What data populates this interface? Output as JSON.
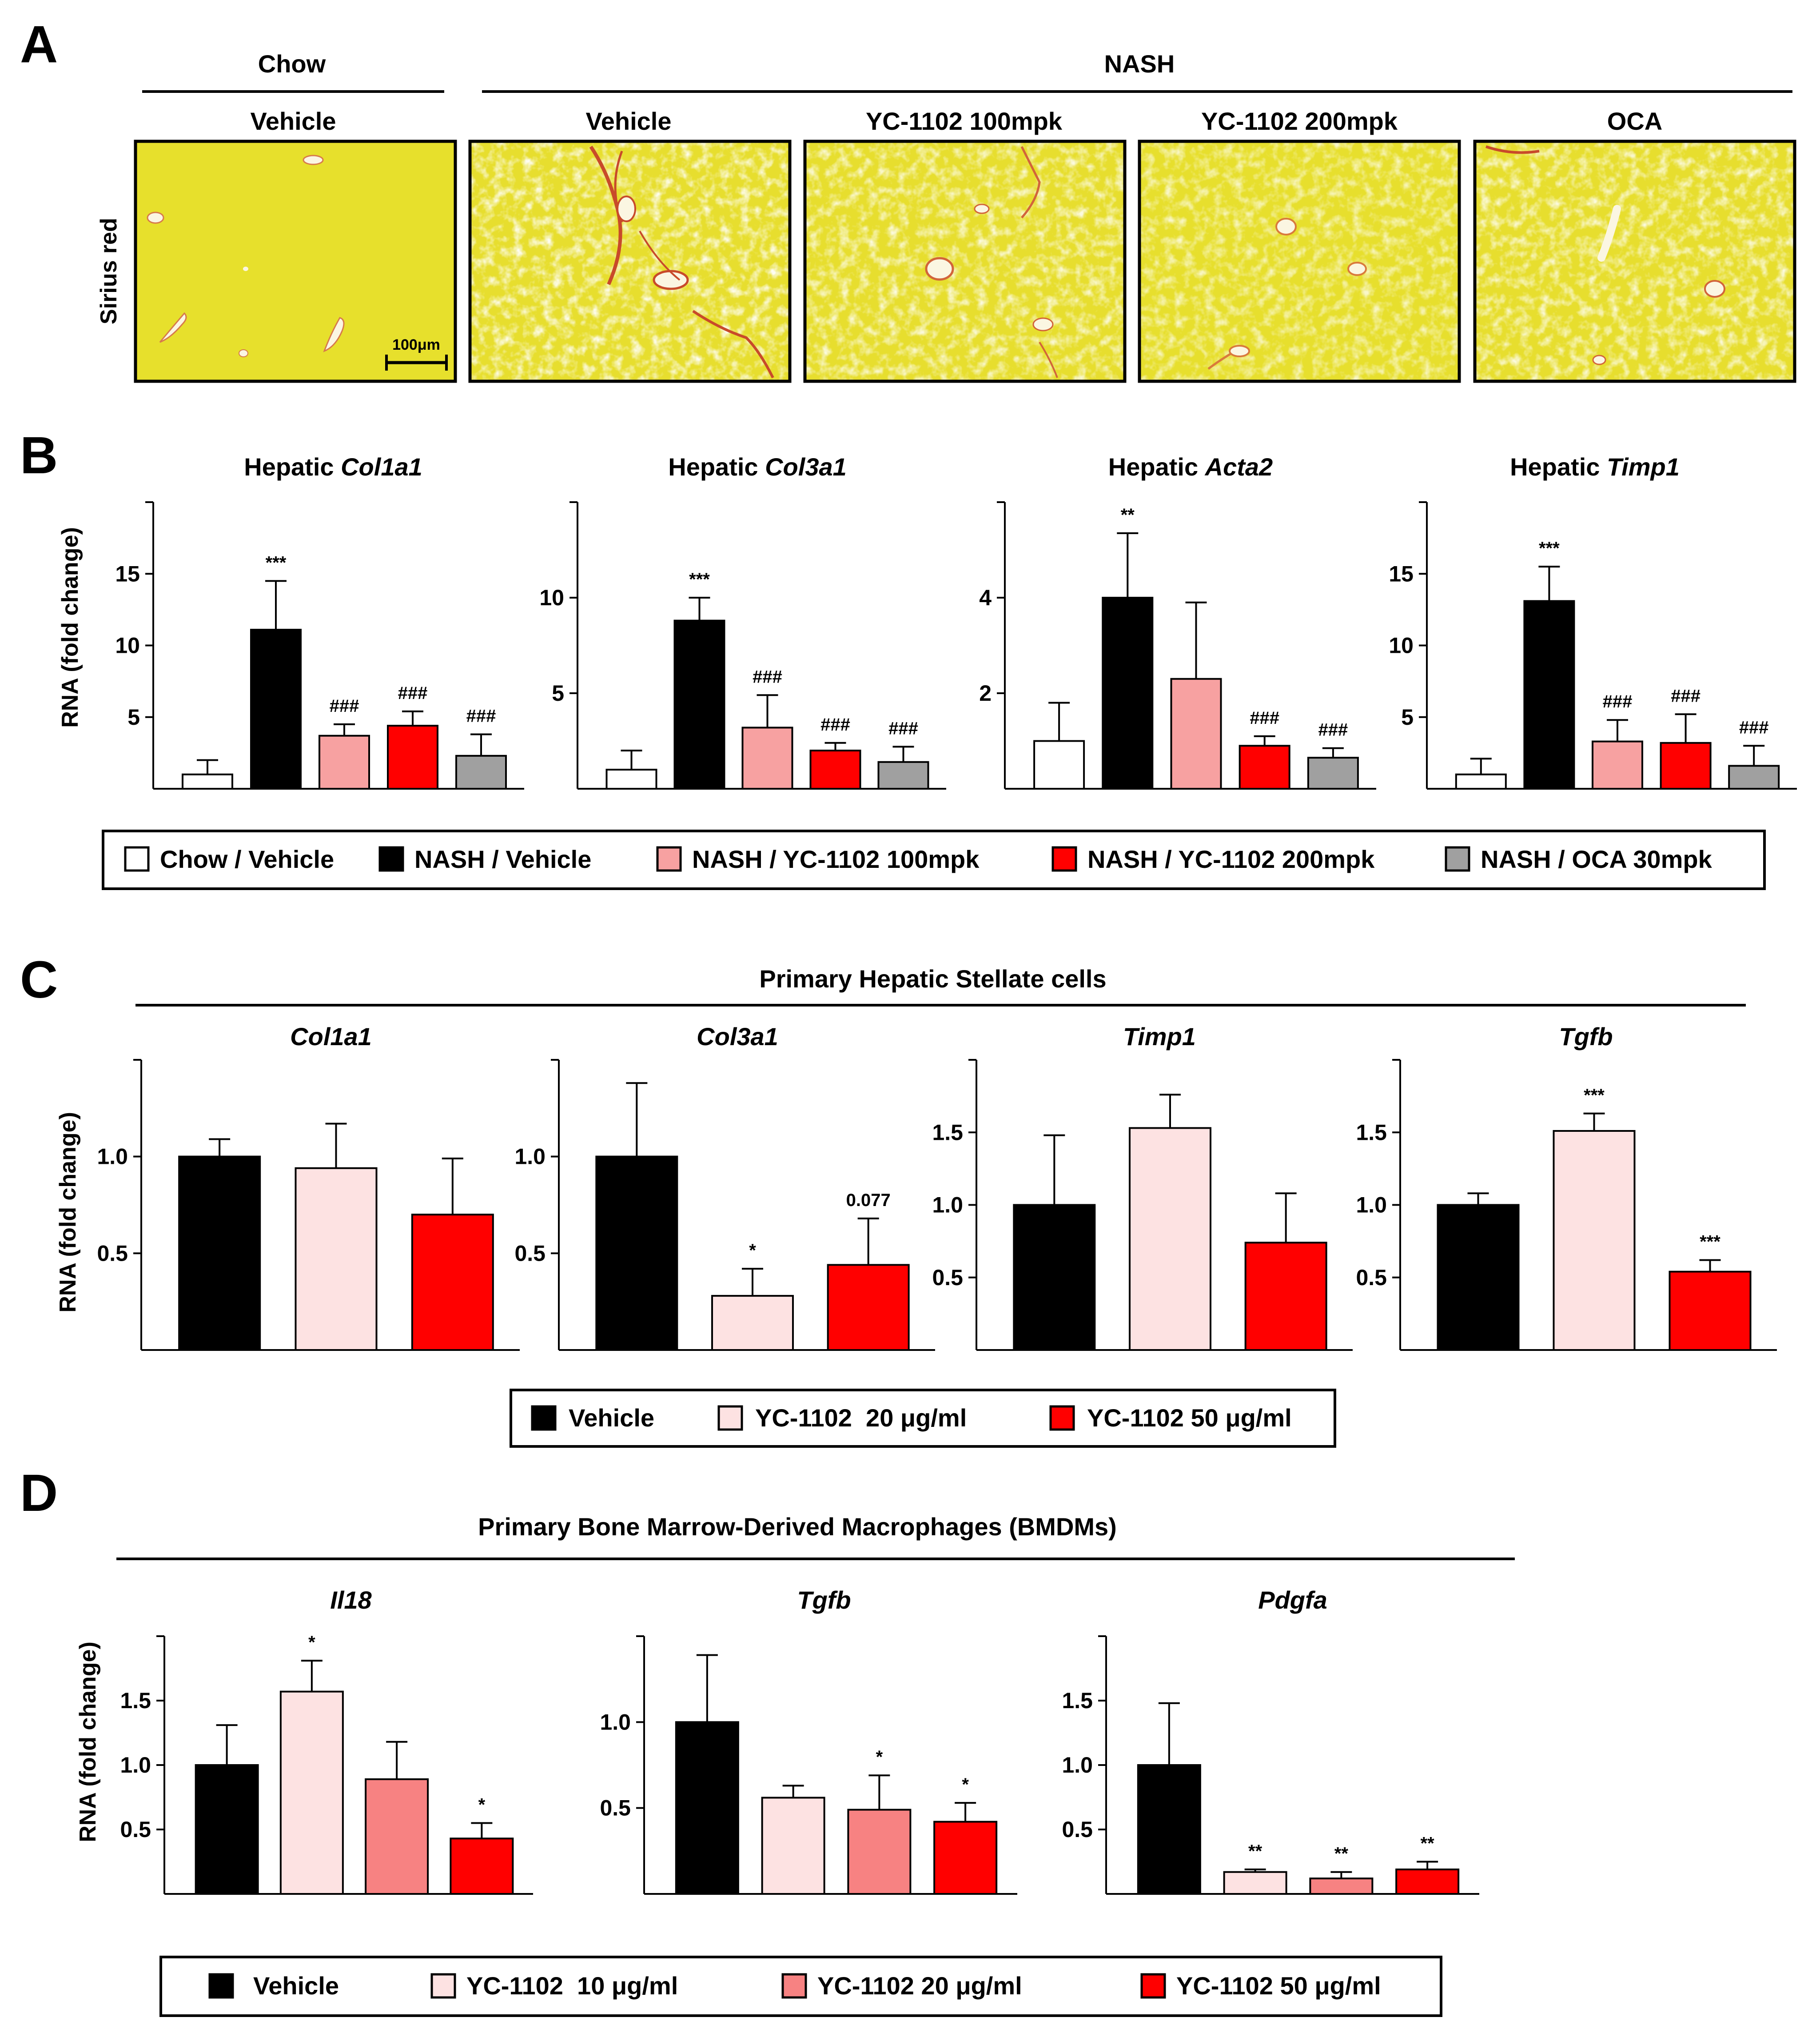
{
  "panels": {
    "A": {
      "letter": "A",
      "group_chow": "Chow",
      "group_nash": "NASH",
      "row_label": "Sirius red",
      "scale_bar": "100μm",
      "images": [
        {
          "label": "Vehicle"
        },
        {
          "label": "Vehicle"
        },
        {
          "label": "YC-1102 100mpk"
        },
        {
          "label": "YC-1102 200mpk"
        },
        {
          "label": "OCA"
        }
      ]
    },
    "B": {
      "letter": "B",
      "ylabel": "RNA (fold change)"
    },
    "C": {
      "letter": "C",
      "header": "Primary Hepatic Stellate cells",
      "ylabel": "RNA (fold change)"
    },
    "D": {
      "letter": "D",
      "header": "Primary Bone Marrow-Derived Macrophages (BMDMs)",
      "ylabel": "RNA (fold change)"
    }
  },
  "legends": {
    "B": [
      {
        "label": "Chow / Vehicle",
        "color": "#ffffff"
      },
      {
        "label": "NASH / Vehicle",
        "color": "#000000"
      },
      {
        "label": "NASH / YC-1102 100mpk",
        "color": "#f7a1a1"
      },
      {
        "label": "NASH / YC-1102 200mpk",
        "color": "#ff0000"
      },
      {
        "label": "NASH / OCA 30mpk",
        "color": "#a0a0a0"
      }
    ],
    "C": [
      {
        "label": "Vehicle",
        "color": "#000000"
      },
      {
        "label": "YC-1102  20 μg/ml",
        "color": "#fde2e2"
      },
      {
        "label": "YC-1102 50 μg/ml",
        "color": "#ff0000"
      }
    ],
    "D": [
      {
        "label": "Vehicle",
        "color": "#000000"
      },
      {
        "label": "YC-1102  10 μg/ml",
        "color": "#fde2e2"
      },
      {
        "label": "YC-1102 20 μg/ml",
        "color": "#f78282"
      },
      {
        "label": "YC-1102 50 μg/ml",
        "color": "#ff0000"
      }
    ]
  },
  "chart_data": [
    {
      "panel": "B",
      "type": "bar",
      "title_prefix": "Hepatic ",
      "title_gene": "Col1a1",
      "ylim": [
        0,
        20
      ],
      "yticks": [
        5,
        10,
        15
      ],
      "colors": [
        "#ffffff",
        "#000000",
        "#f7a1a1",
        "#ff0000",
        "#a0a0a0"
      ],
      "values": [
        1.0,
        11.1,
        3.7,
        4.4,
        2.3
      ],
      "errors": [
        1.0,
        3.4,
        0.8,
        1.0,
        1.5
      ],
      "annotations": [
        "",
        "***",
        "###",
        "###",
        "###"
      ]
    },
    {
      "panel": "B",
      "type": "bar",
      "title_prefix": "Hepatic ",
      "title_gene": "Col3a1",
      "ylim": [
        0,
        15
      ],
      "yticks": [
        5,
        10
      ],
      "colors": [
        "#ffffff",
        "#000000",
        "#f7a1a1",
        "#ff0000",
        "#a0a0a0"
      ],
      "values": [
        1.0,
        8.8,
        3.2,
        2.0,
        1.4
      ],
      "errors": [
        1.0,
        1.2,
        1.7,
        0.4,
        0.8
      ],
      "annotations": [
        "",
        "***",
        "###",
        "###",
        "###"
      ]
    },
    {
      "panel": "B",
      "type": "bar",
      "title_prefix": "Hepatic ",
      "title_gene": "Acta2",
      "ylim": [
        0,
        6
      ],
      "yticks": [
        2,
        4
      ],
      "colors": [
        "#ffffff",
        "#000000",
        "#f7a1a1",
        "#ff0000",
        "#a0a0a0"
      ],
      "values": [
        1.0,
        4.0,
        2.3,
        0.9,
        0.65
      ],
      "errors": [
        0.8,
        1.35,
        1.6,
        0.2,
        0.2
      ],
      "annotations": [
        "",
        "**",
        "",
        "###",
        "###"
      ]
    },
    {
      "panel": "B",
      "type": "bar",
      "title_prefix": "Hepatic ",
      "title_gene": "Timp1",
      "ylim": [
        0,
        20
      ],
      "yticks": [
        5,
        10,
        15
      ],
      "colors": [
        "#ffffff",
        "#000000",
        "#f7a1a1",
        "#ff0000",
        "#a0a0a0"
      ],
      "values": [
        1.0,
        13.1,
        3.3,
        3.2,
        1.6
      ],
      "errors": [
        1.1,
        2.4,
        1.5,
        2.0,
        1.4
      ],
      "annotations": [
        "",
        "***",
        "###",
        "###",
        "###"
      ]
    },
    {
      "panel": "C",
      "type": "bar",
      "title_prefix": "",
      "title_gene": "Col1a1",
      "ylim": [
        0,
        1.5
      ],
      "yticks": [
        0.5,
        1.0
      ],
      "colors": [
        "#000000",
        "#fde2e2",
        "#ff0000"
      ],
      "values": [
        1.0,
        0.94,
        0.7
      ],
      "errors": [
        0.09,
        0.23,
        0.29
      ],
      "annotations": [
        "",
        "",
        ""
      ]
    },
    {
      "panel": "C",
      "type": "bar",
      "title_prefix": "",
      "title_gene": "Col3a1",
      "ylim": [
        0,
        1.5
      ],
      "yticks": [
        0.5,
        1.0
      ],
      "colors": [
        "#000000",
        "#fde2e2",
        "#ff0000"
      ],
      "values": [
        1.0,
        0.28,
        0.44
      ],
      "errors": [
        0.38,
        0.14,
        0.24
      ],
      "annotations": [
        "",
        "*",
        "0.077"
      ]
    },
    {
      "panel": "C",
      "type": "bar",
      "title_prefix": "",
      "title_gene": "Timp1",
      "ylim": [
        0,
        2.0
      ],
      "yticks": [
        0.5,
        1.0,
        1.5
      ],
      "colors": [
        "#000000",
        "#fde2e2",
        "#ff0000"
      ],
      "values": [
        1.0,
        1.53,
        0.74
      ],
      "errors": [
        0.48,
        0.23,
        0.34
      ],
      "annotations": [
        "",
        "",
        ""
      ]
    },
    {
      "panel": "C",
      "type": "bar",
      "title_prefix": "",
      "title_gene": "Tgfb",
      "ylim": [
        0,
        2.0
      ],
      "yticks": [
        0.5,
        1.0,
        1.5
      ],
      "colors": [
        "#000000",
        "#fde2e2",
        "#ff0000"
      ],
      "values": [
        1.0,
        1.51,
        0.54
      ],
      "errors": [
        0.08,
        0.12,
        0.08
      ],
      "annotations": [
        "",
        "***",
        "***"
      ]
    },
    {
      "panel": "D",
      "type": "bar",
      "title_prefix": "",
      "title_gene": "Il18",
      "ylim": [
        0,
        2.0
      ],
      "yticks": [
        0.5,
        1.0,
        1.5
      ],
      "colors": [
        "#000000",
        "#fde2e2",
        "#f78282",
        "#ff0000"
      ],
      "values": [
        1.0,
        1.57,
        0.89,
        0.43
      ],
      "errors": [
        0.31,
        0.24,
        0.29,
        0.12
      ],
      "annotations": [
        "",
        "*",
        "",
        "*"
      ]
    },
    {
      "panel": "D",
      "type": "bar",
      "title_prefix": "",
      "title_gene": "Tgfb",
      "ylim": [
        0,
        1.5
      ],
      "yticks": [
        0.5,
        1.0
      ],
      "colors": [
        "#000000",
        "#fde2e2",
        "#f78282",
        "#ff0000"
      ],
      "values": [
        1.0,
        0.56,
        0.49,
        0.42
      ],
      "errors": [
        0.39,
        0.07,
        0.2,
        0.11
      ],
      "annotations": [
        "",
        "",
        "*",
        "*"
      ]
    },
    {
      "panel": "D",
      "type": "bar",
      "title_prefix": "",
      "title_gene": "Pdgfa",
      "ylim": [
        0,
        2.0
      ],
      "yticks": [
        0.5,
        1.0,
        1.5
      ],
      "colors": [
        "#000000",
        "#fde2e2",
        "#f78282",
        "#ff0000"
      ],
      "values": [
        1.0,
        0.17,
        0.12,
        0.19
      ],
      "errors": [
        0.48,
        0.02,
        0.05,
        0.06
      ],
      "annotations": [
        "",
        "**",
        "**",
        "**"
      ]
    }
  ]
}
